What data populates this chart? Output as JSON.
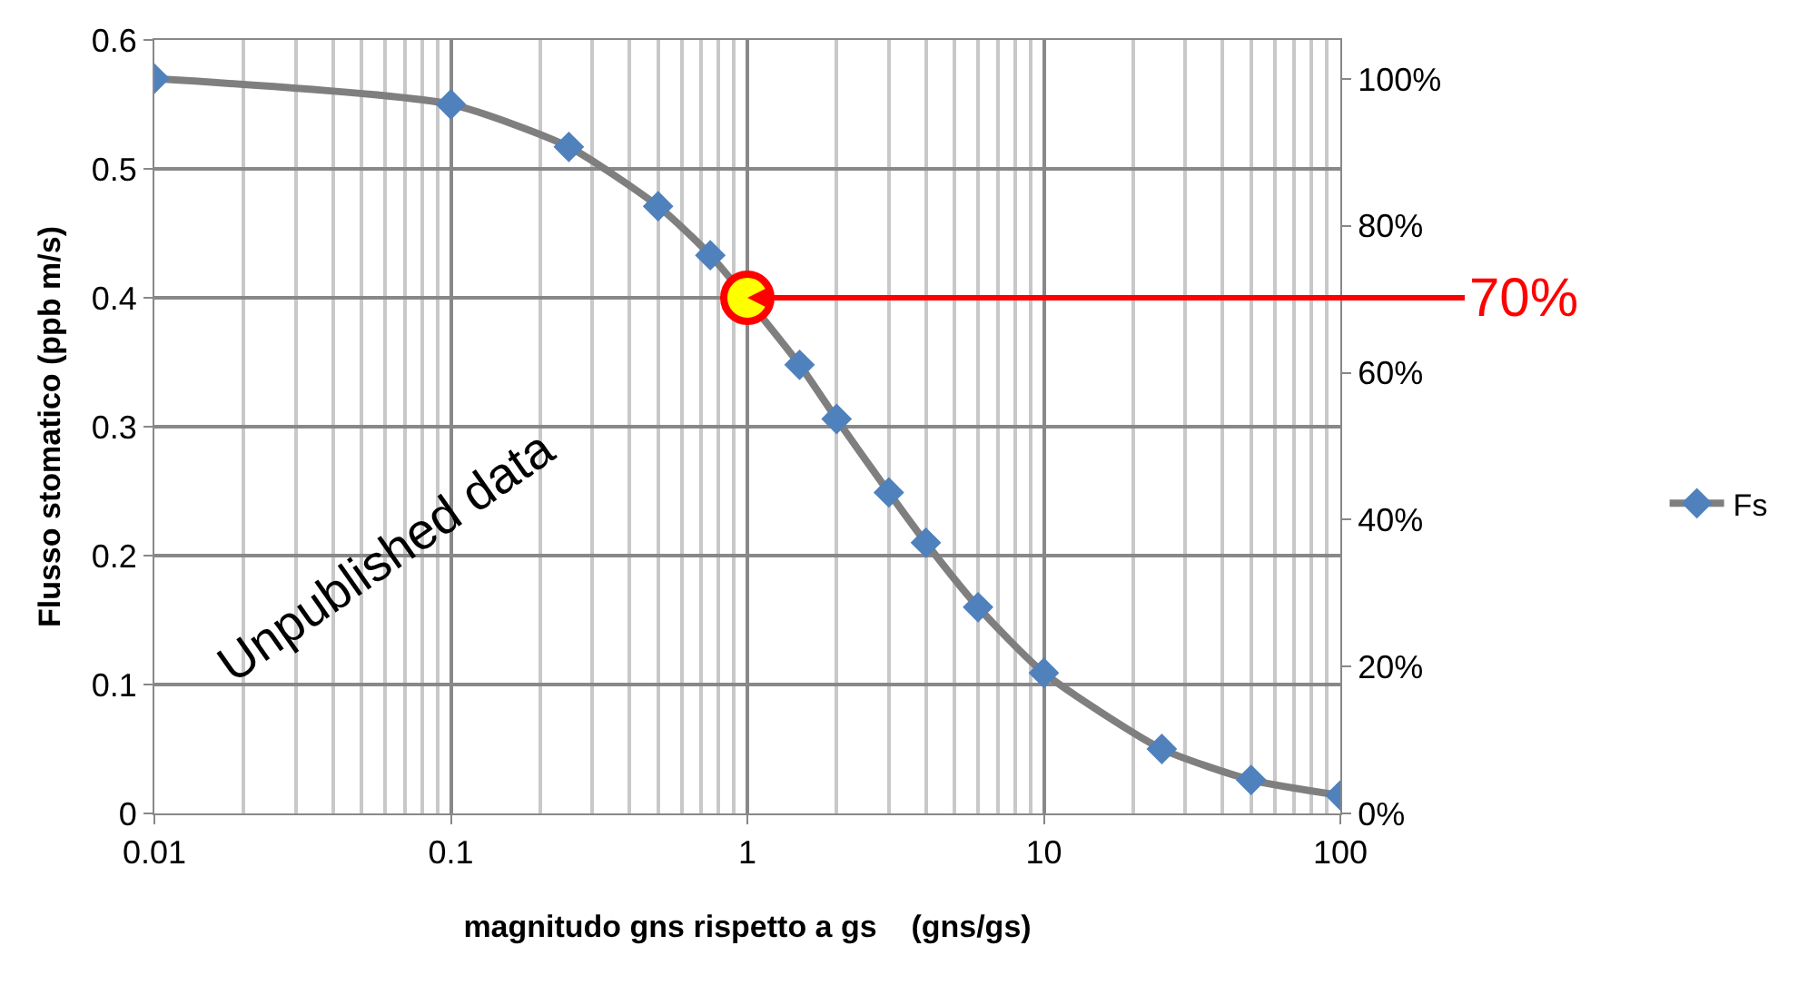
{
  "chart_data": {
    "type": "line",
    "xlabel": "magnitudo gns rispetto a gs    (gns/gs)",
    "ylabel": "Flusso stomatico (ppb m/s)",
    "log": "x",
    "xlim": [
      0.01,
      100
    ],
    "xticks": [
      0.01,
      0.1,
      1,
      10,
      100
    ],
    "ylim": [
      0,
      0.6
    ],
    "yticks": [
      0,
      0.1,
      0.2,
      0.3,
      0.4,
      0.5,
      0.6
    ],
    "y2lim": [
      0,
      105.3
    ],
    "y2ticks": [
      {
        "value": 0,
        "label": "0%"
      },
      {
        "value": 20,
        "label": "20%"
      },
      {
        "value": 40,
        "label": "40%"
      },
      {
        "value": 60,
        "label": "60%"
      },
      {
        "value": 80,
        "label": "80%"
      },
      {
        "value": 100,
        "label": "100%"
      }
    ],
    "grid": true,
    "legend": "right",
    "series": [
      {
        "name": "Fs",
        "marker": "diamond",
        "color": "#7f7f7f",
        "colors": [
          "#4f81bd",
          "#4f81bd",
          "#4f81bd",
          "#4f81bd",
          "#4f81bd",
          "#4f81bd",
          "#4f81bd",
          "#4f81bd",
          "#4f81bd",
          "#4f81bd",
          "#4f81bd",
          "#4f81bd",
          "#4f81bd",
          "#4f81bd"
        ],
        "x": [
          0.01,
          0.1,
          0.25,
          0.5,
          0.75,
          1.5,
          2,
          3,
          4,
          6,
          10,
          25,
          50,
          100
        ],
        "values": [
          0.57,
          0.55,
          0.517,
          0.471,
          0.433,
          0.348,
          0.306,
          0.249,
          0.21,
          0.16,
          0.109,
          0.05,
          0.026,
          0.014
        ]
      },
      {
        "type": "scatter",
        "marker": "circle",
        "color": "#ffff00",
        "x": [
          1
        ],
        "values": [
          0.4
        ]
      }
    ],
    "annotations": [
      {
        "text": "70%",
        "x": 1,
        "y": 0.4
      },
      "Unpublished data"
    ]
  }
}
